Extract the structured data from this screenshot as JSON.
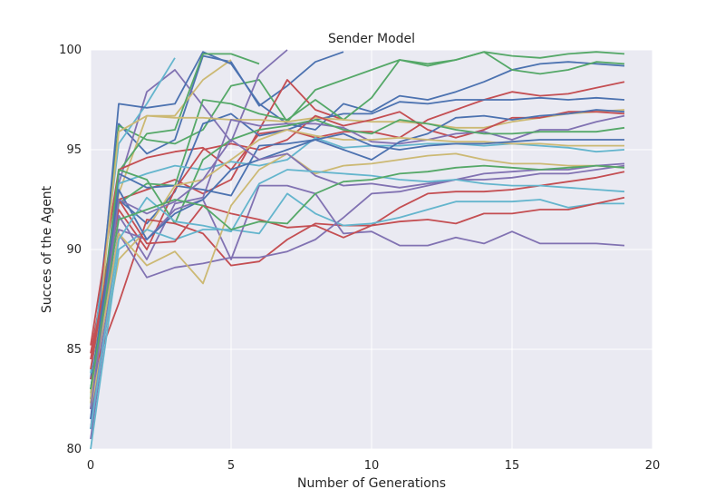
{
  "chart_data": {
    "type": "line",
    "title": "Sender Model",
    "xlabel": "Number of Generations",
    "ylabel": "Succes of the Agent",
    "xlim": [
      0,
      20
    ],
    "ylim": [
      80,
      100
    ],
    "xticks": [
      "0",
      "5",
      "10",
      "15",
      "20"
    ],
    "yticks": [
      "80",
      "85",
      "90",
      "95",
      "100"
    ],
    "grid": true,
    "legend": "none",
    "background": "#EAEAF2",
    "palette": [
      "#4C72B0",
      "#55A868",
      "#C44E52",
      "#8172B2",
      "#CCB974",
      "#64B5CD"
    ],
    "series": [
      {
        "color": "#4C72B0",
        "x": [
          0,
          1,
          2,
          3,
          4,
          5,
          6,
          7,
          8,
          9
        ],
        "y": [
          83.5,
          96.3,
          94.8,
          95.5,
          99.7,
          99.4,
          97.2,
          98.2,
          99.4,
          99.9
        ]
      },
      {
        "color": "#55A868",
        "x": [
          0,
          1,
          2,
          3,
          4,
          5,
          6,
          7,
          8,
          9,
          10,
          11,
          12,
          13,
          14,
          15,
          16,
          17,
          18,
          19
        ],
        "y": [
          82.5,
          96.2,
          95.5,
          95.3,
          96.0,
          98.2,
          98.5,
          96.4,
          98.0,
          98.5,
          99.0,
          99.5,
          99.3,
          99.5,
          99.9,
          99.7,
          99.6,
          99.8,
          99.9,
          99.8
        ]
      },
      {
        "color": "#C44E52",
        "x": [
          0,
          1,
          2,
          3,
          4,
          5,
          6,
          7,
          8,
          9
        ],
        "y": [
          84.8,
          92.5,
          93.0,
          93.5,
          92.8,
          93.5,
          96.0,
          98.5,
          97.0,
          96.5
        ]
      },
      {
        "color": "#8172B2",
        "x": [
          0,
          1,
          2,
          3,
          4,
          5,
          6,
          7
        ],
        "y": [
          81.0,
          93.3,
          97.9,
          99.0,
          97.2,
          95.4,
          98.8,
          100.0
        ]
      },
      {
        "color": "#CCB974",
        "x": [
          0,
          1,
          2,
          3,
          4,
          5
        ],
        "y": [
          82.8,
          92.8,
          96.7,
          96.7,
          98.5,
          99.5
        ]
      },
      {
        "color": "#64B5CD",
        "x": [
          0,
          1,
          2,
          3
        ],
        "y": [
          83.8,
          95.3,
          97.3,
          99.6
        ]
      },
      {
        "color": "#4C72B0",
        "x": [
          0,
          1,
          2,
          3,
          4,
          5,
          6,
          7,
          8,
          9,
          10,
          11,
          12,
          13,
          14,
          15,
          16,
          17,
          18,
          19
        ],
        "y": [
          82.0,
          97.3,
          97.1,
          97.3,
          99.9,
          99.3,
          97.3,
          96.3,
          96.0,
          97.3,
          96.9,
          97.7,
          97.5,
          97.9,
          98.4,
          99.0,
          99.3,
          99.4,
          99.3,
          99.2
        ]
      },
      {
        "color": "#55A868",
        "x": [
          0,
          1,
          2,
          3,
          4,
          5,
          6,
          7,
          8,
          9,
          10,
          11,
          12,
          13,
          14,
          15,
          16,
          17,
          18,
          19
        ],
        "y": [
          82.3,
          93.9,
          95.8,
          96.0,
          99.8,
          99.8,
          99.3,
          null,
          null,
          null,
          null,
          null,
          null,
          null,
          null,
          null,
          null,
          null,
          null,
          null
        ]
      },
      {
        "color": "#C44E52",
        "x": [
          0,
          1,
          2,
          3,
          4,
          5,
          6,
          7,
          8,
          9,
          10,
          11,
          12,
          13,
          14,
          15,
          16,
          17,
          18,
          19
        ],
        "y": [
          85.2,
          94.0,
          94.6,
          94.9,
          95.1,
          94.0,
          95.8,
          96.0,
          95.6,
          95.9,
          95.9,
          95.6,
          96.5,
          97.0,
          97.5,
          97.9,
          97.7,
          97.8,
          98.1,
          98.4
        ]
      },
      {
        "color": "#4C72B0",
        "x": [
          0,
          1,
          2,
          3,
          4,
          5,
          6,
          7,
          8,
          9,
          10,
          11,
          12,
          13,
          14,
          15,
          16,
          17,
          18,
          19
        ],
        "y": [
          83.0,
          92.5,
          91.3,
          92.9,
          96.3,
          96.8,
          95.7,
          96.0,
          96.5,
          96.8,
          96.8,
          97.4,
          97.3,
          97.5,
          97.5,
          97.5,
          97.6,
          97.5,
          97.6,
          97.5
        ]
      },
      {
        "color": "#55A868",
        "x": [
          0,
          1,
          2,
          3,
          4,
          5,
          6,
          7,
          8,
          9,
          10,
          11,
          12,
          13,
          14,
          15,
          16,
          17,
          18,
          19
        ],
        "y": [
          82.0,
          92.3,
          93.3,
          93.2,
          97.5,
          97.3,
          96.8,
          96.5,
          97.5,
          96.5,
          97.6,
          99.5,
          99.2,
          99.5,
          99.9,
          99.0,
          98.8,
          99.0,
          99.4,
          99.3
        ]
      },
      {
        "color": "#CCB974",
        "x": [
          0,
          1,
          2,
          3,
          4,
          5,
          6,
          7,
          8,
          9,
          10,
          11,
          12,
          13,
          14,
          15,
          16,
          17,
          18,
          19
        ],
        "y": [
          82.3,
          95.9,
          96.7,
          96.6,
          96.6,
          96.5,
          96.5,
          96.4,
          96.6,
          96.5,
          96.4,
          96.4,
          96.3,
          96.1,
          96.1,
          96.4,
          96.6,
          96.8,
          96.9,
          97.0
        ]
      },
      {
        "color": "#64B5CD",
        "x": [
          0,
          1,
          2,
          3,
          4,
          5,
          6,
          7,
          8,
          9,
          10,
          11,
          12,
          13,
          14,
          15,
          16,
          17,
          18,
          19
        ],
        "y": [
          82.5,
          93.3,
          93.8,
          94.2,
          94.0,
          94.4,
          94.2,
          94.5,
          95.6,
          95.1,
          95.2,
          95.2,
          95.3,
          95.3,
          95.2,
          95.3,
          95.2,
          95.1,
          94.9,
          95.0
        ]
      },
      {
        "color": "#C44E52",
        "x": [
          0,
          1,
          2,
          3,
          4,
          5,
          6,
          7,
          8,
          9,
          10,
          11,
          12,
          13,
          14,
          15,
          16,
          17,
          18,
          19
        ],
        "y": [
          84.5,
          92.0,
          90.0,
          93.0,
          95.0,
          95.3,
          95.0,
          95.5,
          96.7,
          96.2,
          96.5,
          96.9,
          96.0,
          95.6,
          96.0,
          96.6,
          96.6,
          96.9,
          96.9,
          96.8
        ]
      },
      {
        "color": "#8172B2",
        "x": [
          0,
          1,
          2,
          3,
          4,
          5,
          6,
          7,
          8,
          9,
          10,
          11,
          12,
          13,
          14,
          15,
          16,
          17,
          18,
          19
        ],
        "y": [
          81.5,
          91.7,
          89.5,
          92.3,
          92.6,
          96.5,
          96.2,
          96.3,
          96.3,
          96.1,
          95.4,
          95.3,
          95.5,
          95.8,
          95.9,
          95.5,
          96.0,
          96.0,
          96.4,
          96.7
        ]
      },
      {
        "color": "#4C72B0",
        "x": [
          0,
          1,
          2,
          3,
          4,
          5,
          6,
          7,
          8,
          9,
          10,
          11,
          12,
          13,
          14,
          15,
          16,
          17,
          18,
          19
        ],
        "y": [
          81.5,
          93.8,
          93.1,
          93.2,
          93.0,
          92.7,
          95.2,
          95.3,
          95.5,
          95.0,
          94.5,
          95.4,
          95.8,
          96.6,
          96.7,
          96.5,
          96.7,
          96.8,
          97.0,
          96.9
        ]
      },
      {
        "color": "#55A868",
        "x": [
          0,
          1,
          2,
          3,
          4,
          5,
          6,
          7,
          8,
          9,
          10,
          11,
          12,
          13,
          14,
          15,
          16,
          17,
          18,
          19
        ],
        "y": [
          82.5,
          94.0,
          93.5,
          91.3,
          94.5,
          95.5,
          96.0,
          96.2,
          96.5,
          96.0,
          95.8,
          96.5,
          96.3,
          96.0,
          95.8,
          95.8,
          95.9,
          95.9,
          95.9,
          96.1
        ]
      },
      {
        "color": "#CCB974",
        "x": [
          0,
          1,
          2,
          3,
          4,
          5,
          6,
          7,
          8,
          9,
          10,
          11,
          12,
          13,
          14,
          15,
          16,
          17,
          18,
          19
        ],
        "y": [
          82.0,
          89.5,
          91.0,
          93.2,
          93.5,
          94.5,
          95.5,
          96.0,
          95.7,
          95.5,
          95.5,
          95.6,
          95.5,
          95.4,
          95.4,
          95.3,
          95.3,
          95.2,
          95.2,
          95.2
        ]
      },
      {
        "color": "#C44E52",
        "x": [
          0,
          1,
          2,
          3,
          4,
          5,
          6,
          7,
          8,
          9,
          10,
          11,
          12,
          13,
          14,
          15,
          16,
          17,
          18,
          19
        ],
        "y": [
          83.5,
          87.3,
          91.5,
          91.3,
          90.8,
          89.2,
          89.4,
          90.5,
          91.3,
          91.2,
          91.2,
          92.1,
          92.8,
          92.9,
          92.9,
          93.0,
          93.2,
          93.4,
          93.6,
          93.9
        ]
      },
      {
        "color": "#8172B2",
        "x": [
          0,
          1,
          2,
          3,
          4,
          5,
          6,
          7,
          8,
          9,
          10,
          11,
          12,
          13,
          14,
          15,
          16,
          17,
          18,
          19
        ],
        "y": [
          80.5,
          90.8,
          88.6,
          89.1,
          89.3,
          89.6,
          89.6,
          89.9,
          90.5,
          91.6,
          92.8,
          92.9,
          93.2,
          93.5,
          93.5,
          93.6,
          93.8,
          93.8,
          94.0,
          94.2
        ]
      },
      {
        "color": "#64B5CD",
        "x": [
          0,
          1,
          2,
          3,
          4,
          5,
          6,
          7,
          8,
          9,
          10,
          11,
          12,
          13,
          14,
          15,
          16,
          17,
          18,
          19
        ],
        "y": [
          80.0,
          90.0,
          91.0,
          90.5,
          91.0,
          91.0,
          90.8,
          92.8,
          91.8,
          91.2,
          91.3,
          91.6,
          92.0,
          92.4,
          92.4,
          92.4,
          92.5,
          92.1,
          92.3,
          92.3
        ]
      },
      {
        "color": "#8172B2",
        "x": [
          0,
          1,
          2,
          3,
          4,
          5,
          6,
          7,
          8,
          9,
          10,
          11,
          12,
          13,
          14,
          15,
          16,
          17,
          18,
          19
        ],
        "y": [
          81.0,
          91.0,
          90.5,
          92.0,
          92.5,
          89.5,
          93.2,
          93.2,
          92.8,
          90.8,
          90.9,
          90.2,
          90.2,
          90.6,
          90.3,
          90.9,
          90.3,
          90.3,
          90.3,
          90.2
        ]
      },
      {
        "color": "#C44E52",
        "x": [
          0,
          1,
          2,
          3,
          4,
          5,
          6,
          7,
          8,
          9,
          10,
          11,
          12,
          13,
          14,
          15,
          16,
          17,
          18,
          19
        ],
        "y": [
          84.0,
          92.5,
          90.3,
          90.4,
          92.2,
          91.8,
          91.5,
          91.1,
          91.2,
          90.6,
          91.2,
          91.4,
          91.5,
          91.3,
          91.8,
          91.8,
          92.0,
          92.0,
          92.3,
          92.6
        ]
      },
      {
        "color": "#CCB974",
        "x": [
          0,
          1,
          2,
          3,
          4,
          5,
          6,
          7,
          8,
          9,
          10,
          11,
          12,
          13,
          14,
          15,
          16,
          17,
          18,
          19
        ],
        "y": [
          82.5,
          90.8,
          89.2,
          89.9,
          88.3,
          92.2,
          94.0,
          94.8,
          93.8,
          94.2,
          94.3,
          94.5,
          94.7,
          94.8,
          94.5,
          94.3,
          94.3,
          94.2,
          94.2,
          94.1
        ]
      },
      {
        "color": "#4C72B0",
        "x": [
          0,
          1,
          2,
          3,
          4,
          5,
          6,
          7,
          8,
          9,
          10,
          11,
          12,
          13,
          14,
          15,
          16,
          17,
          18,
          19
        ],
        "y": [
          83.0,
          93.0,
          90.5,
          91.8,
          92.5,
          94.0,
          94.5,
          95.0,
          95.5,
          95.8,
          95.2,
          95.0,
          95.2,
          95.3,
          95.3,
          95.4,
          95.5,
          95.5,
          95.5,
          95.5
        ]
      },
      {
        "color": "#8172B2",
        "x": [
          0,
          1,
          2,
          3,
          4,
          5,
          6,
          7,
          8,
          9,
          10,
          11,
          12,
          13,
          14,
          15,
          16,
          17,
          18,
          19
        ],
        "y": [
          82.0,
          92.5,
          91.8,
          92.4,
          93.5,
          95.5,
          94.5,
          94.8,
          93.7,
          93.2,
          93.3,
          93.1,
          93.3,
          93.5,
          93.8,
          93.9,
          94.0,
          94.0,
          94.2,
          94.3
        ]
      },
      {
        "color": "#64B5CD",
        "x": [
          0,
          1,
          2,
          3,
          4,
          5,
          6,
          7,
          8,
          9,
          10,
          11,
          12,
          13,
          14,
          15,
          16,
          17,
          18,
          19
        ],
        "y": [
          81.0,
          90.5,
          92.6,
          91.4,
          91.2,
          90.9,
          93.3,
          94.0,
          93.9,
          93.8,
          93.7,
          93.5,
          93.4,
          93.5,
          93.3,
          93.2,
          93.2,
          93.1,
          93.0,
          92.9
        ]
      },
      {
        "color": "#55A868",
        "x": [
          0,
          1,
          2,
          3,
          4,
          5,
          6,
          7,
          8,
          9,
          10,
          11,
          12,
          13,
          14,
          15,
          16,
          17,
          18,
          19
        ],
        "y": [
          83.0,
          91.5,
          92.0,
          92.5,
          92.2,
          91.0,
          91.4,
          91.3,
          92.8,
          93.4,
          93.5,
          93.8,
          93.9,
          94.1,
          94.2,
          94.1,
          94.0,
          94.1,
          94.2,
          94.1
        ]
      }
    ]
  }
}
